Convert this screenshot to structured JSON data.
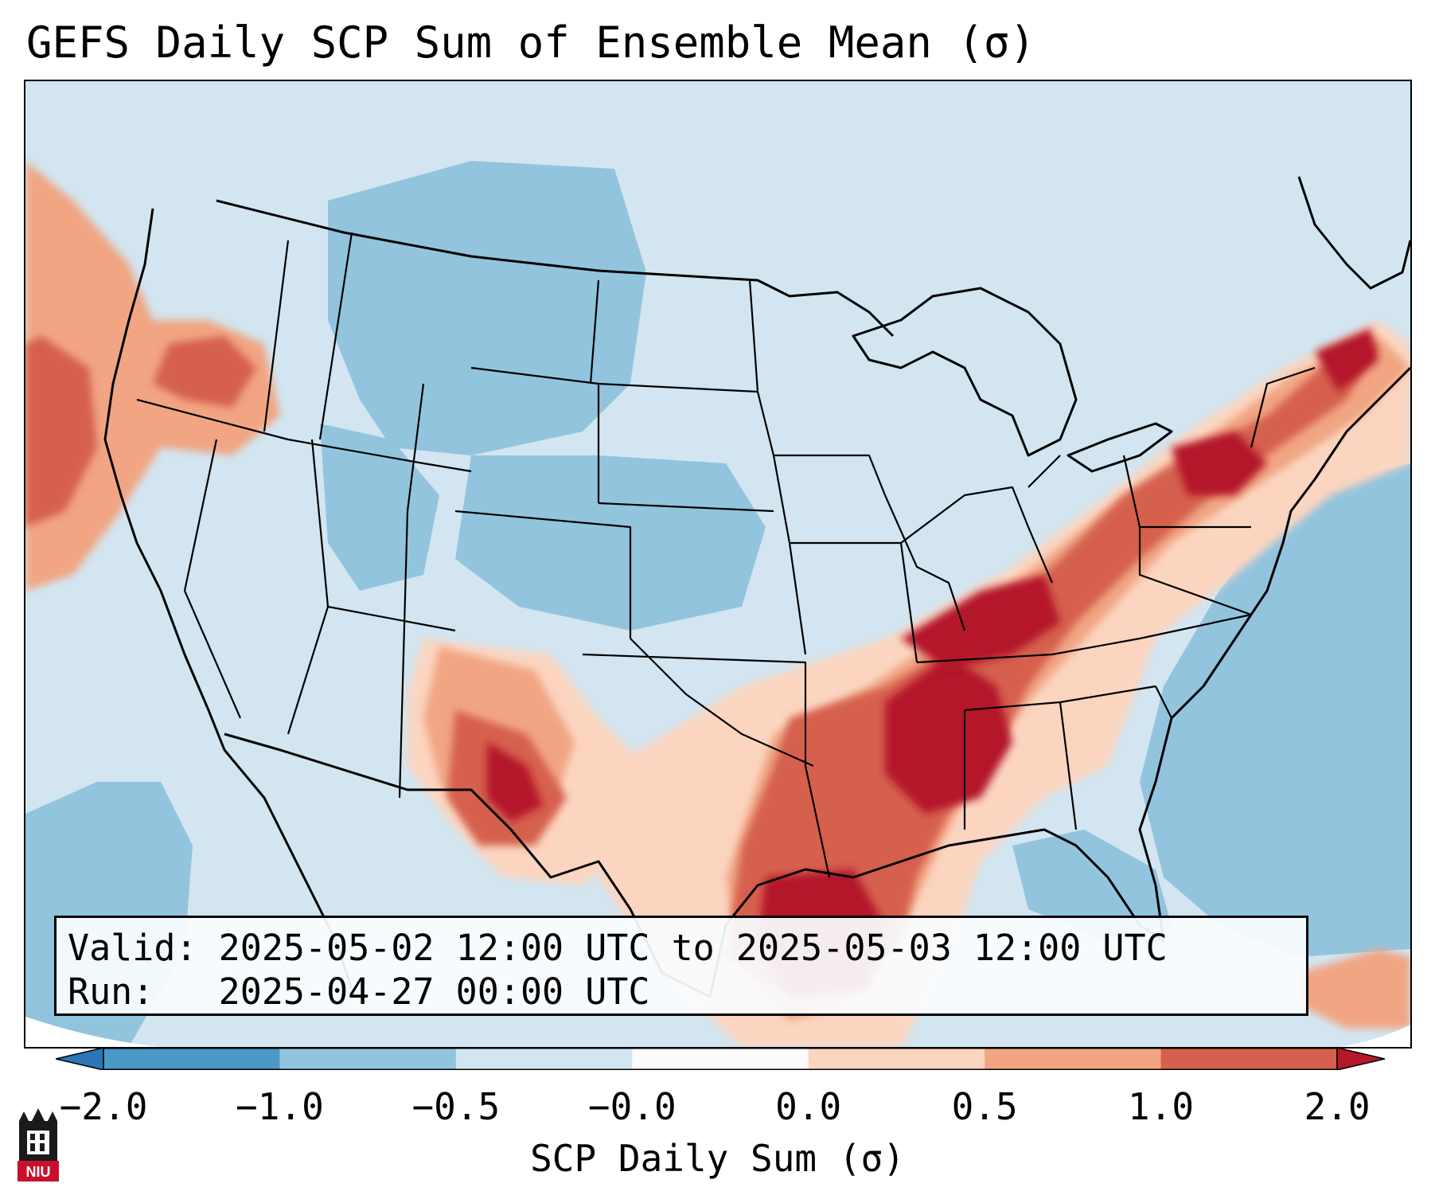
{
  "title": "GEFS Daily SCP Sum of Ensemble Mean (σ)",
  "info": {
    "valid_line": "Valid: 2025-05-02 12:00 UTC to 2025-05-03 12:00 UTC",
    "run_line": "Run:   2025-04-27 00:00 UTC"
  },
  "colorbar": {
    "label": "SCP Daily Sum (σ)",
    "ticks": [
      "−2.0",
      "−1.0",
      "−0.5",
      "−0.0",
      "0.0",
      "0.5",
      "1.0",
      "2.0"
    ],
    "colors": [
      "#2c75b6",
      "#4a98c8",
      "#92c4de",
      "#d2e5f0",
      "#fbfbfb",
      "#fbd5c0",
      "#f1a583",
      "#d5604d",
      "#b4182b"
    ]
  },
  "logo": {
    "text": "NIU",
    "icon": "niu-university-logo-icon"
  }
}
